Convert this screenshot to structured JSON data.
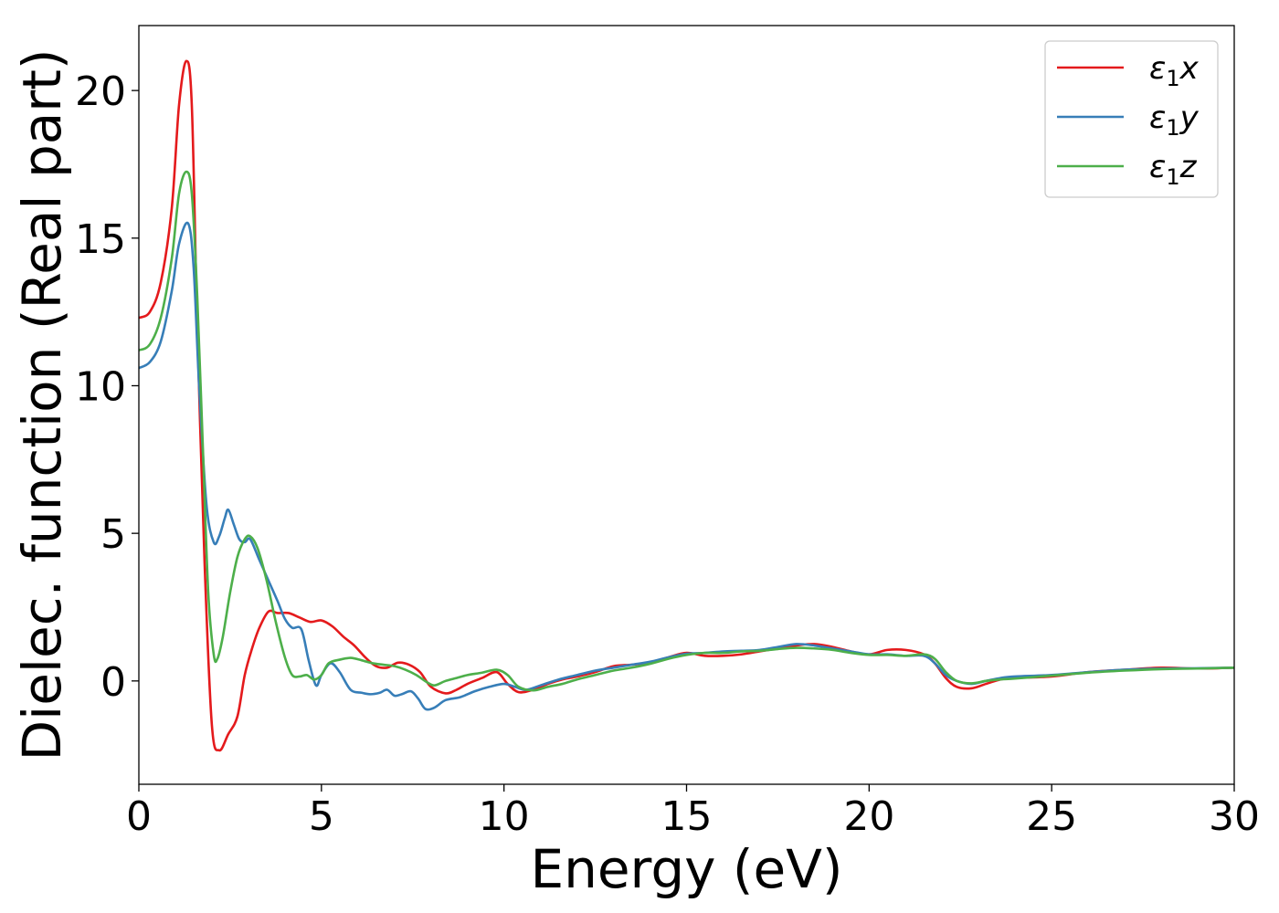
{
  "chart_data": {
    "type": "line",
    "xlabel": "Energy (eV)",
    "ylabel": "Dielec. function (Real part)",
    "xlim": [
      0,
      30
    ],
    "ylim": [
      -3.5,
      22.2
    ],
    "xticks": [
      "0",
      "5",
      "10",
      "15",
      "20",
      "25",
      "30"
    ],
    "yticks": [
      "0",
      "5",
      "10",
      "15",
      "20"
    ],
    "grid": false,
    "legend_position": "top-right",
    "series": [
      {
        "name": "ε₁x",
        "legend_main": "ε",
        "legend_sub": "1",
        "legend_tail": "x",
        "color": "#e41a1c",
        "points": [
          [
            0,
            12.3
          ],
          [
            0.3,
            12.5
          ],
          [
            0.6,
            13.5
          ],
          [
            0.9,
            16
          ],
          [
            1.1,
            19.5
          ],
          [
            1.3,
            21
          ],
          [
            1.45,
            19.5
          ],
          [
            1.6,
            12
          ],
          [
            1.8,
            4
          ],
          [
            2.0,
            -1.5
          ],
          [
            2.2,
            -2.35
          ],
          [
            2.45,
            -1.8
          ],
          [
            2.7,
            -1.2
          ],
          [
            2.9,
            0.2
          ],
          [
            3.1,
            1.1
          ],
          [
            3.3,
            1.8
          ],
          [
            3.55,
            2.35
          ],
          [
            3.8,
            2.3
          ],
          [
            4.1,
            2.3
          ],
          [
            4.4,
            2.15
          ],
          [
            4.7,
            2.0
          ],
          [
            5.0,
            2.05
          ],
          [
            5.3,
            1.85
          ],
          [
            5.6,
            1.5
          ],
          [
            5.9,
            1.2
          ],
          [
            6.2,
            0.8
          ],
          [
            6.5,
            0.5
          ],
          [
            6.8,
            0.45
          ],
          [
            7.1,
            0.62
          ],
          [
            7.4,
            0.55
          ],
          [
            7.7,
            0.3
          ],
          [
            8.0,
            -0.2
          ],
          [
            8.4,
            -0.42
          ],
          [
            8.7,
            -0.3
          ],
          [
            9.0,
            -0.1
          ],
          [
            9.4,
            0.1
          ],
          [
            9.8,
            0.3
          ],
          [
            10.1,
            -0.1
          ],
          [
            10.4,
            -0.38
          ],
          [
            10.8,
            -0.3
          ],
          [
            11.2,
            -0.1
          ],
          [
            11.6,
            0.05
          ],
          [
            12.0,
            0.15
          ],
          [
            12.5,
            0.3
          ],
          [
            13.0,
            0.5
          ],
          [
            13.5,
            0.55
          ],
          [
            14.0,
            0.62
          ],
          [
            14.5,
            0.8
          ],
          [
            15.0,
            0.95
          ],
          [
            15.5,
            0.85
          ],
          [
            16.0,
            0.85
          ],
          [
            16.5,
            0.9
          ],
          [
            17.0,
            1.0
          ],
          [
            17.5,
            1.1
          ],
          [
            18.0,
            1.2
          ],
          [
            18.5,
            1.25
          ],
          [
            19.0,
            1.15
          ],
          [
            19.5,
            1.0
          ],
          [
            20.0,
            0.9
          ],
          [
            20.5,
            1.05
          ],
          [
            21.0,
            1.05
          ],
          [
            21.5,
            0.9
          ],
          [
            21.8,
            0.6
          ],
          [
            22.1,
            0.1
          ],
          [
            22.4,
            -0.2
          ],
          [
            22.8,
            -0.25
          ],
          [
            23.2,
            -0.1
          ],
          [
            23.6,
            0.05
          ],
          [
            24.0,
            0.1
          ],
          [
            25.0,
            0.15
          ],
          [
            26.0,
            0.3
          ],
          [
            27.0,
            0.38
          ],
          [
            28.0,
            0.45
          ],
          [
            29.0,
            0.42
          ],
          [
            30.0,
            0.45
          ]
        ]
      },
      {
        "name": "ε₁y",
        "legend_main": "ε",
        "legend_sub": "1",
        "legend_tail": "y",
        "color": "#377eb8",
        "points": [
          [
            0,
            10.6
          ],
          [
            0.3,
            10.8
          ],
          [
            0.6,
            11.5
          ],
          [
            0.9,
            13.2
          ],
          [
            1.1,
            14.8
          ],
          [
            1.35,
            15.5
          ],
          [
            1.5,
            14
          ],
          [
            1.65,
            10
          ],
          [
            1.85,
            6
          ],
          [
            2.05,
            4.7
          ],
          [
            2.2,
            4.9
          ],
          [
            2.35,
            5.5
          ],
          [
            2.45,
            5.8
          ],
          [
            2.6,
            5.3
          ],
          [
            2.75,
            4.8
          ],
          [
            2.9,
            4.7
          ],
          [
            3.05,
            4.8
          ],
          [
            3.3,
            4.1
          ],
          [
            3.55,
            3.4
          ],
          [
            3.8,
            2.7
          ],
          [
            4.0,
            2.1
          ],
          [
            4.2,
            1.8
          ],
          [
            4.45,
            1.75
          ],
          [
            4.65,
            0.7
          ],
          [
            4.85,
            -0.15
          ],
          [
            5.0,
            0.2
          ],
          [
            5.25,
            0.6
          ],
          [
            5.5,
            0.3
          ],
          [
            5.8,
            -0.3
          ],
          [
            6.1,
            -0.4
          ],
          [
            6.35,
            -0.45
          ],
          [
            6.6,
            -0.4
          ],
          [
            6.8,
            -0.3
          ],
          [
            7.0,
            -0.5
          ],
          [
            7.2,
            -0.45
          ],
          [
            7.45,
            -0.35
          ],
          [
            7.65,
            -0.6
          ],
          [
            7.85,
            -0.95
          ],
          [
            8.1,
            -0.9
          ],
          [
            8.4,
            -0.65
          ],
          [
            8.8,
            -0.55
          ],
          [
            9.2,
            -0.35
          ],
          [
            9.6,
            -0.2
          ],
          [
            10.0,
            -0.1
          ],
          [
            10.3,
            -0.2
          ],
          [
            10.6,
            -0.3
          ],
          [
            11.0,
            -0.15
          ],
          [
            11.5,
            0.05
          ],
          [
            12.0,
            0.2
          ],
          [
            12.5,
            0.35
          ],
          [
            13.0,
            0.45
          ],
          [
            13.5,
            0.55
          ],
          [
            14.0,
            0.65
          ],
          [
            14.5,
            0.8
          ],
          [
            15.0,
            0.92
          ],
          [
            15.5,
            0.95
          ],
          [
            16.0,
            1.0
          ],
          [
            16.5,
            1.02
          ],
          [
            17.0,
            1.05
          ],
          [
            17.5,
            1.15
          ],
          [
            18.0,
            1.25
          ],
          [
            18.5,
            1.2
          ],
          [
            19.0,
            1.1
          ],
          [
            19.5,
            1.0
          ],
          [
            20.0,
            0.9
          ],
          [
            20.5,
            0.9
          ],
          [
            21.0,
            0.85
          ],
          [
            21.5,
            0.85
          ],
          [
            21.8,
            0.6
          ],
          [
            22.1,
            0.2
          ],
          [
            22.4,
            0.0
          ],
          [
            22.8,
            -0.1
          ],
          [
            23.2,
            0.0
          ],
          [
            23.6,
            0.1
          ],
          [
            24.0,
            0.15
          ],
          [
            25.0,
            0.2
          ],
          [
            26.0,
            0.3
          ],
          [
            27.0,
            0.38
          ],
          [
            28.0,
            0.42
          ],
          [
            29.0,
            0.43
          ],
          [
            30.0,
            0.45
          ]
        ]
      },
      {
        "name": "ε₁z",
        "legend_main": "ε",
        "legend_sub": "1",
        "legend_tail": "z",
        "color": "#4daf4a",
        "points": [
          [
            0,
            11.2
          ],
          [
            0.3,
            11.4
          ],
          [
            0.6,
            12.3
          ],
          [
            0.9,
            14.3
          ],
          [
            1.1,
            16.5
          ],
          [
            1.3,
            17.25
          ],
          [
            1.45,
            16.5
          ],
          [
            1.6,
            13
          ],
          [
            1.75,
            8
          ],
          [
            1.9,
            3
          ],
          [
            2.05,
            0.9
          ],
          [
            2.15,
            0.75
          ],
          [
            2.3,
            1.5
          ],
          [
            2.5,
            3.0
          ],
          [
            2.7,
            4.2
          ],
          [
            2.9,
            4.8
          ],
          [
            3.05,
            4.9
          ],
          [
            3.25,
            4.5
          ],
          [
            3.5,
            3.4
          ],
          [
            3.75,
            2.0
          ],
          [
            4.0,
            0.8
          ],
          [
            4.2,
            0.2
          ],
          [
            4.4,
            0.15
          ],
          [
            4.6,
            0.2
          ],
          [
            4.8,
            0.05
          ],
          [
            5.0,
            0.2
          ],
          [
            5.2,
            0.6
          ],
          [
            5.5,
            0.72
          ],
          [
            5.8,
            0.78
          ],
          [
            6.1,
            0.7
          ],
          [
            6.4,
            0.6
          ],
          [
            6.7,
            0.55
          ],
          [
            7.0,
            0.5
          ],
          [
            7.3,
            0.38
          ],
          [
            7.6,
            0.2
          ],
          [
            7.9,
            -0.05
          ],
          [
            8.1,
            -0.15
          ],
          [
            8.4,
            0.0
          ],
          [
            8.7,
            0.1
          ],
          [
            9.0,
            0.2
          ],
          [
            9.4,
            0.28
          ],
          [
            9.8,
            0.38
          ],
          [
            10.1,
            0.2
          ],
          [
            10.4,
            -0.2
          ],
          [
            10.8,
            -0.32
          ],
          [
            11.2,
            -0.2
          ],
          [
            11.6,
            -0.1
          ],
          [
            12.0,
            0.05
          ],
          [
            12.5,
            0.2
          ],
          [
            13.0,
            0.35
          ],
          [
            13.5,
            0.45
          ],
          [
            14.0,
            0.58
          ],
          [
            14.5,
            0.75
          ],
          [
            15.0,
            0.88
          ],
          [
            15.5,
            0.95
          ],
          [
            16.0,
            0.95
          ],
          [
            16.5,
            1.0
          ],
          [
            17.0,
            1.02
          ],
          [
            17.5,
            1.08
          ],
          [
            18.0,
            1.12
          ],
          [
            18.5,
            1.1
          ],
          [
            19.0,
            1.05
          ],
          [
            19.5,
            0.95
          ],
          [
            20.0,
            0.88
          ],
          [
            20.5,
            0.88
          ],
          [
            21.0,
            0.85
          ],
          [
            21.5,
            0.9
          ],
          [
            21.8,
            0.75
          ],
          [
            22.1,
            0.3
          ],
          [
            22.4,
            0.0
          ],
          [
            22.8,
            -0.08
          ],
          [
            23.2,
            0.0
          ],
          [
            23.6,
            0.05
          ],
          [
            24.0,
            0.08
          ],
          [
            25.0,
            0.18
          ],
          [
            26.0,
            0.28
          ],
          [
            27.0,
            0.35
          ],
          [
            28.0,
            0.4
          ],
          [
            29.0,
            0.42
          ],
          [
            30.0,
            0.45
          ]
        ]
      }
    ]
  }
}
